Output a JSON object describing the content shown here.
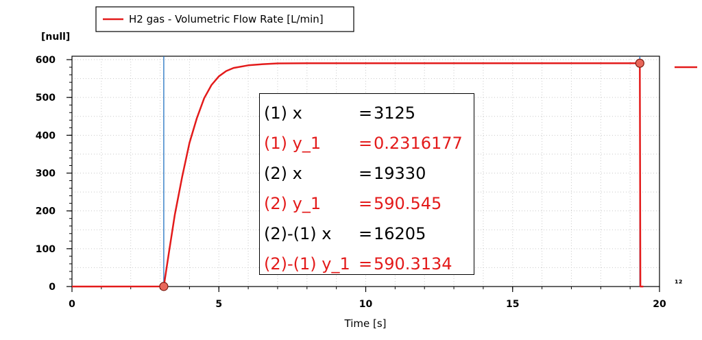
{
  "chart_data": {
    "type": "line",
    "legend": {
      "label": "H2 gas - Volumetric Flow Rate [L/min]",
      "position": "top-left",
      "color": "#e31a1a"
    },
    "ylabel": "[null]",
    "xlabel": "Time [s]",
    "xlim": [
      0,
      20
    ],
    "ylim": [
      0,
      600
    ],
    "x_ticks": [
      "0",
      "5",
      "10",
      "15",
      "20"
    ],
    "y_ticks": [
      "0",
      "100",
      "200",
      "300",
      "400",
      "500",
      "600"
    ],
    "grid": true,
    "series": [
      {
        "name": "H2 gas - Volumetric Flow Rate [L/min]",
        "color": "#e31a1a",
        "x": [
          0,
          3.125,
          3.3,
          3.5,
          3.75,
          4.0,
          4.25,
          4.5,
          4.75,
          5.0,
          5.25,
          5.5,
          6.0,
          6.5,
          7.0,
          8.0,
          10,
          12,
          15,
          18,
          19.33,
          19.35,
          19.45
        ],
        "y": [
          0,
          0.23,
          90,
          190,
          290,
          380,
          445,
          498,
          533,
          556,
          570,
          578,
          585,
          588,
          590,
          590.5,
          590.5,
          590.5,
          590.5,
          590.5,
          590.545,
          0,
          0
        ]
      }
    ],
    "cursors": [
      {
        "x": 3.125,
        "y": 0.2316177,
        "color": "#1f6fbf"
      },
      {
        "x": 19.33,
        "y": 590.545,
        "color": "#1f6fbf"
      }
    ],
    "marker_color": "#e8675a"
  },
  "readout": [
    {
      "label": "(1) x",
      "eq": "=",
      "value": "3125",
      "color": "#000000"
    },
    {
      "label": "(1) y_1",
      "eq": "=",
      "value": "0.2316177",
      "color": "#e31a1a"
    },
    {
      "label": "(2) x",
      "eq": "=",
      "value": "19330",
      "color": "#000000"
    },
    {
      "label": "(2) y_1",
      "eq": "=",
      "value": "590.545",
      "color": "#e31a1a"
    },
    {
      "label": "(2)-(1) x",
      "eq": "=",
      "value": "16205",
      "color": "#000000"
    },
    {
      "label": "(2)-(1) y_1",
      "eq": "=",
      "value": "590.3134",
      "color": "#e31a1a"
    }
  ],
  "edge_marker_text": "¹²"
}
